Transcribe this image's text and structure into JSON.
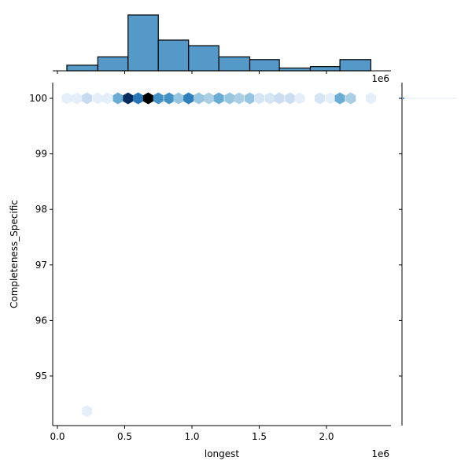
{
  "chart_data": {
    "type": "hexbin_jointplot",
    "title": "",
    "xlabel": "longest",
    "ylabel": "Completeness_Specific",
    "x_offset_label": "1e6",
    "xlim": [
      -20000.0,
      2470000.0
    ],
    "ylim": [
      94.12,
      100.28
    ],
    "x_ticks": [
      0.0,
      0.5,
      1.0,
      1.5,
      2.0
    ],
    "x_tick_labels": [
      "0.0",
      "0.5",
      "1.0",
      "1.5",
      "2.0"
    ],
    "y_ticks": [
      95,
      96,
      97,
      98,
      99,
      100
    ],
    "y_tick_labels": [
      "95",
      "96",
      "97",
      "98",
      "99",
      "100"
    ],
    "colormap": "Blues",
    "hexbins": [
      {
        "x": 70000.0,
        "y": 100,
        "shade": 0.08
      },
      {
        "x": 145000.0,
        "y": 100,
        "shade": 0.08
      },
      {
        "x": 220000.0,
        "y": 100,
        "shade": 0.22
      },
      {
        "x": 300000.0,
        "y": 100,
        "shade": 0.08
      },
      {
        "x": 370000.0,
        "y": 100,
        "shade": 0.08
      },
      {
        "x": 450000.0,
        "y": 100,
        "shade": 0.45
      },
      {
        "x": 525000.0,
        "y": 100,
        "shade": 0.9
      },
      {
        "x": 600000.0,
        "y": 100,
        "shade": 0.65
      },
      {
        "x": 675000.0,
        "y": 100,
        "shade": 1.0
      },
      {
        "x": 750000.0,
        "y": 100,
        "shade": 0.55
      },
      {
        "x": 830000.0,
        "y": 100,
        "shade": 0.55
      },
      {
        "x": 900000.0,
        "y": 100,
        "shade": 0.35
      },
      {
        "x": 975000.0,
        "y": 100,
        "shade": 0.62
      },
      {
        "x": 1050000.0,
        "y": 100,
        "shade": 0.35
      },
      {
        "x": 1125000.0,
        "y": 100,
        "shade": 0.3
      },
      {
        "x": 1200000.0,
        "y": 100,
        "shade": 0.45
      },
      {
        "x": 1280000.0,
        "y": 100,
        "shade": 0.35
      },
      {
        "x": 1350000.0,
        "y": 100,
        "shade": 0.3
      },
      {
        "x": 1430000.0,
        "y": 100,
        "shade": 0.35
      },
      {
        "x": 1500000.0,
        "y": 100,
        "shade": 0.15
      },
      {
        "x": 1580000.0,
        "y": 100,
        "shade": 0.15
      },
      {
        "x": 1650000.0,
        "y": 100,
        "shade": 0.2
      },
      {
        "x": 1730000.0,
        "y": 100,
        "shade": 0.2
      },
      {
        "x": 1800000.0,
        "y": 100,
        "shade": 0.08
      },
      {
        "x": 1950000.0,
        "y": 100,
        "shade": 0.15
      },
      {
        "x": 2030000.0,
        "y": 100,
        "shade": 0.08
      },
      {
        "x": 2100000.0,
        "y": 100,
        "shade": 0.45
      },
      {
        "x": 2180000.0,
        "y": 100,
        "shade": 0.3
      },
      {
        "x": 2330000.0,
        "y": 100,
        "shade": 0.08
      },
      {
        "x": 220000.0,
        "y": 94.37,
        "shade": 0.08
      }
    ],
    "marginal_x_histogram": {
      "bin_edges": [
        70000.0,
        300000.0,
        525000.0,
        750000.0,
        975000.0,
        1200000.0,
        1430000.0,
        1650000.0,
        1880000.0,
        2100000.0,
        2330000.0
      ],
      "counts": [
        2,
        5,
        20,
        11,
        9,
        5,
        4,
        1,
        1.5,
        4
      ],
      "color": "#5499c7"
    },
    "marginal_y_histogram": {
      "note": "Nearly all mass at 100; single sliver",
      "color": "#5499c7"
    }
  }
}
